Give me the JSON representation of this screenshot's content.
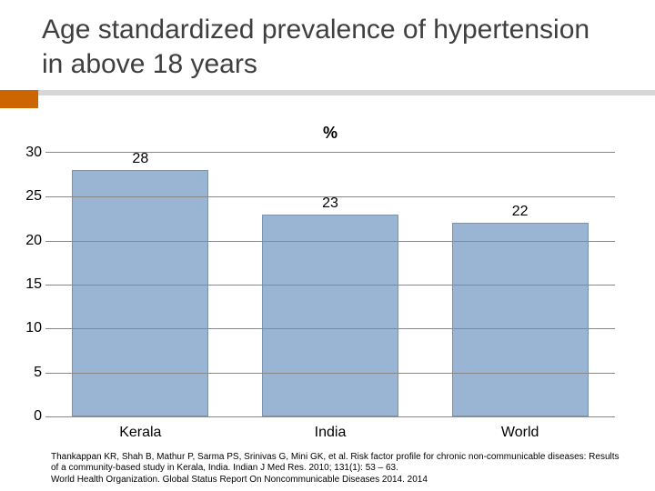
{
  "title": "Age standardized prevalence of hypertension in above  18 years",
  "accent_color": "#cc6600",
  "chart": {
    "type": "bar",
    "title": "%",
    "title_fontsize": 18,
    "categories": [
      "Kerala",
      "India",
      "World"
    ],
    "values": [
      28,
      23,
      22
    ],
    "bar_color": "#9ab4d4",
    "bar_border_color": "#7a93b3",
    "bar_width": 0.72,
    "ylim": [
      0,
      30
    ],
    "ytick_step": 5,
    "yticks": [
      0,
      5,
      10,
      15,
      20,
      25,
      30
    ],
    "label_fontsize": 16,
    "value_label_fontsize": 16,
    "grid_color": "#888888",
    "background_color": "#ffffff"
  },
  "citation_1": "Thankappan KR, Shah B, Mathur P, Sarma PS, Srinivas G, Mini GK, et al. Risk factor profile for chronic non-communicable diseases: Results of a community-based study in Kerala, India. Indian J Med Res. 2010; 131(1): 53 – 63.",
  "citation_2": "World Health Organization. Global Status Report On Noncommunicable Diseases 2014.  2014"
}
